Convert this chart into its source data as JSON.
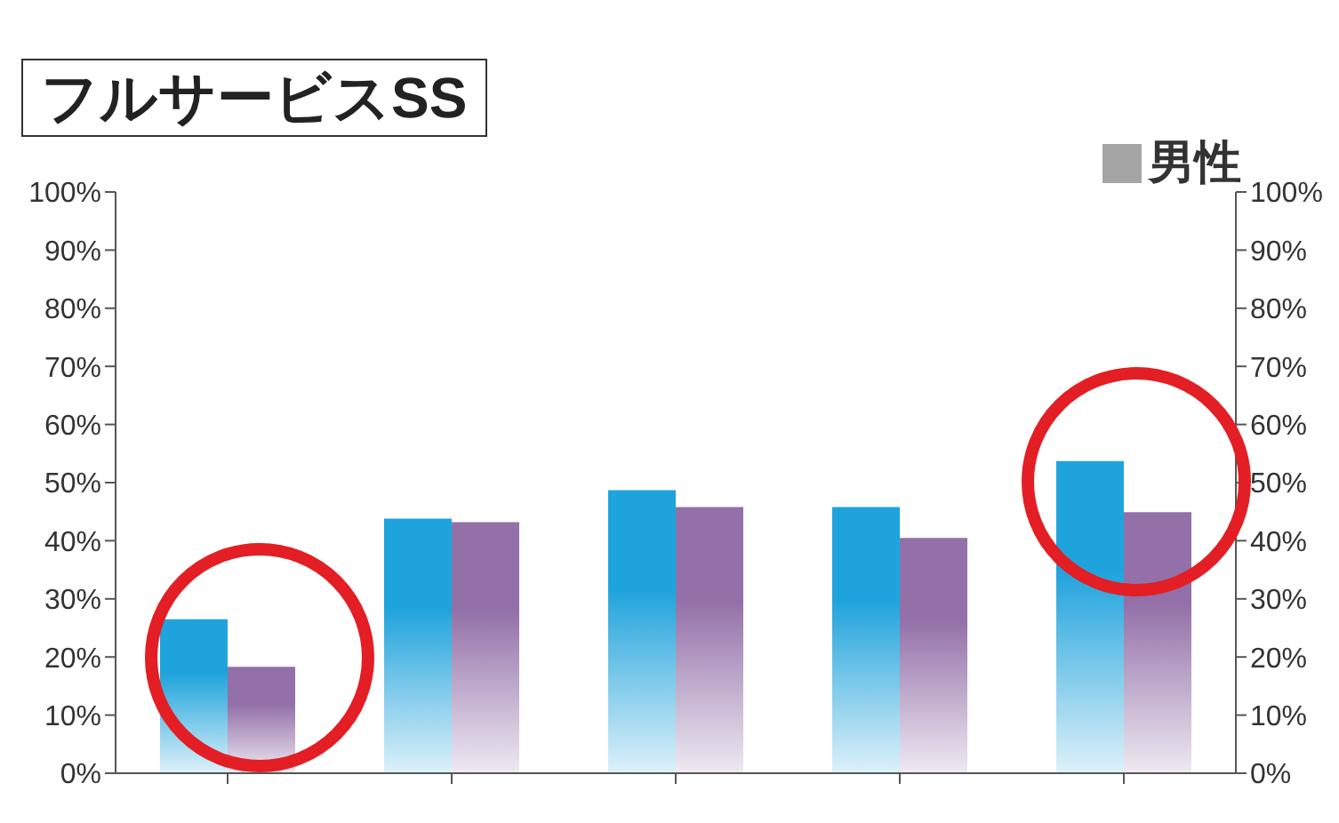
{
  "chart_data": {
    "type": "bar",
    "title": "フルサービスSS",
    "annotations": [
      "男性"
    ],
    "categories": [
      null,
      null,
      null,
      null,
      null
    ],
    "series": [
      {
        "color": "#1fa3dc",
        "values": [
          26.5,
          43.8,
          48.7,
          45.8,
          53.7
        ]
      },
      {
        "color": "#9370a8",
        "values": [
          18.3,
          43.2,
          45.8,
          40.5,
          44.9
        ]
      }
    ],
    "ylim": [
      0,
      100
    ],
    "yticks": [
      {
        "value": 0,
        "label": "0%"
      },
      {
        "value": 10,
        "label": "10%"
      },
      {
        "value": 20,
        "label": "20%"
      },
      {
        "value": 30,
        "label": "30%"
      },
      {
        "value": 40,
        "label": "40%"
      },
      {
        "value": 50,
        "label": "50%"
      },
      {
        "value": 60,
        "label": "60%"
      },
      {
        "value": 70,
        "label": "70%"
      },
      {
        "value": 80,
        "label": "80%"
      },
      {
        "value": 90,
        "label": "90%"
      },
      {
        "value": 100,
        "label": "100%"
      }
    ],
    "y2lim": [
      0,
      100
    ],
    "y2ticks": [
      {
        "value": 0,
        "label": "0%"
      },
      {
        "value": 10,
        "label": "10%"
      },
      {
        "value": 20,
        "label": "20%"
      },
      {
        "value": 30,
        "label": "30%"
      },
      {
        "value": 40,
        "label": "40%"
      },
      {
        "value": 50,
        "label": "50%"
      },
      {
        "value": 60,
        "label": "60%"
      },
      {
        "value": 70,
        "label": "70%"
      },
      {
        "value": 80,
        "label": "80%"
      },
      {
        "value": 90,
        "label": "90%"
      },
      {
        "value": 100,
        "label": "100%"
      }
    ],
    "grid": false,
    "legend": false
  }
}
